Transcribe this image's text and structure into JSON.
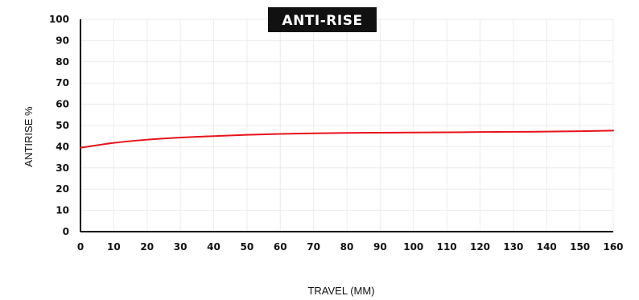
{
  "chart_data": {
    "type": "line",
    "title": "ANTI-RISE",
    "xlabel": "TRAVEL (MM)",
    "ylabel": "ANTIRISE %",
    "xlim": [
      0,
      160
    ],
    "ylim": [
      0,
      100
    ],
    "x_ticks": [
      "0",
      "10",
      "20",
      "30",
      "40",
      "50",
      "60",
      "70",
      "80",
      "90",
      "100",
      "110",
      "120",
      "130",
      "140",
      "150",
      "160"
    ],
    "y_ticks": [
      "0",
      "10",
      "20",
      "30",
      "40",
      "50",
      "60",
      "70",
      "80",
      "90",
      "100"
    ],
    "grid": true,
    "series": [
      {
        "color": "#e8121b",
        "x": [
          0,
          10,
          20,
          30,
          40,
          50,
          60,
          70,
          80,
          90,
          100,
          110,
          120,
          130,
          140,
          150,
          160
        ],
        "y": [
          39.5,
          41.8,
          43.3,
          44.3,
          45.0,
          45.6,
          46.0,
          46.3,
          46.5,
          46.6,
          46.7,
          46.8,
          46.9,
          47.0,
          47.1,
          47.3,
          47.6
        ]
      }
    ],
    "colors": {
      "title_background": "#111111",
      "title_text": "#ffffff",
      "grid": "#ececec",
      "axis": "#000000"
    }
  }
}
